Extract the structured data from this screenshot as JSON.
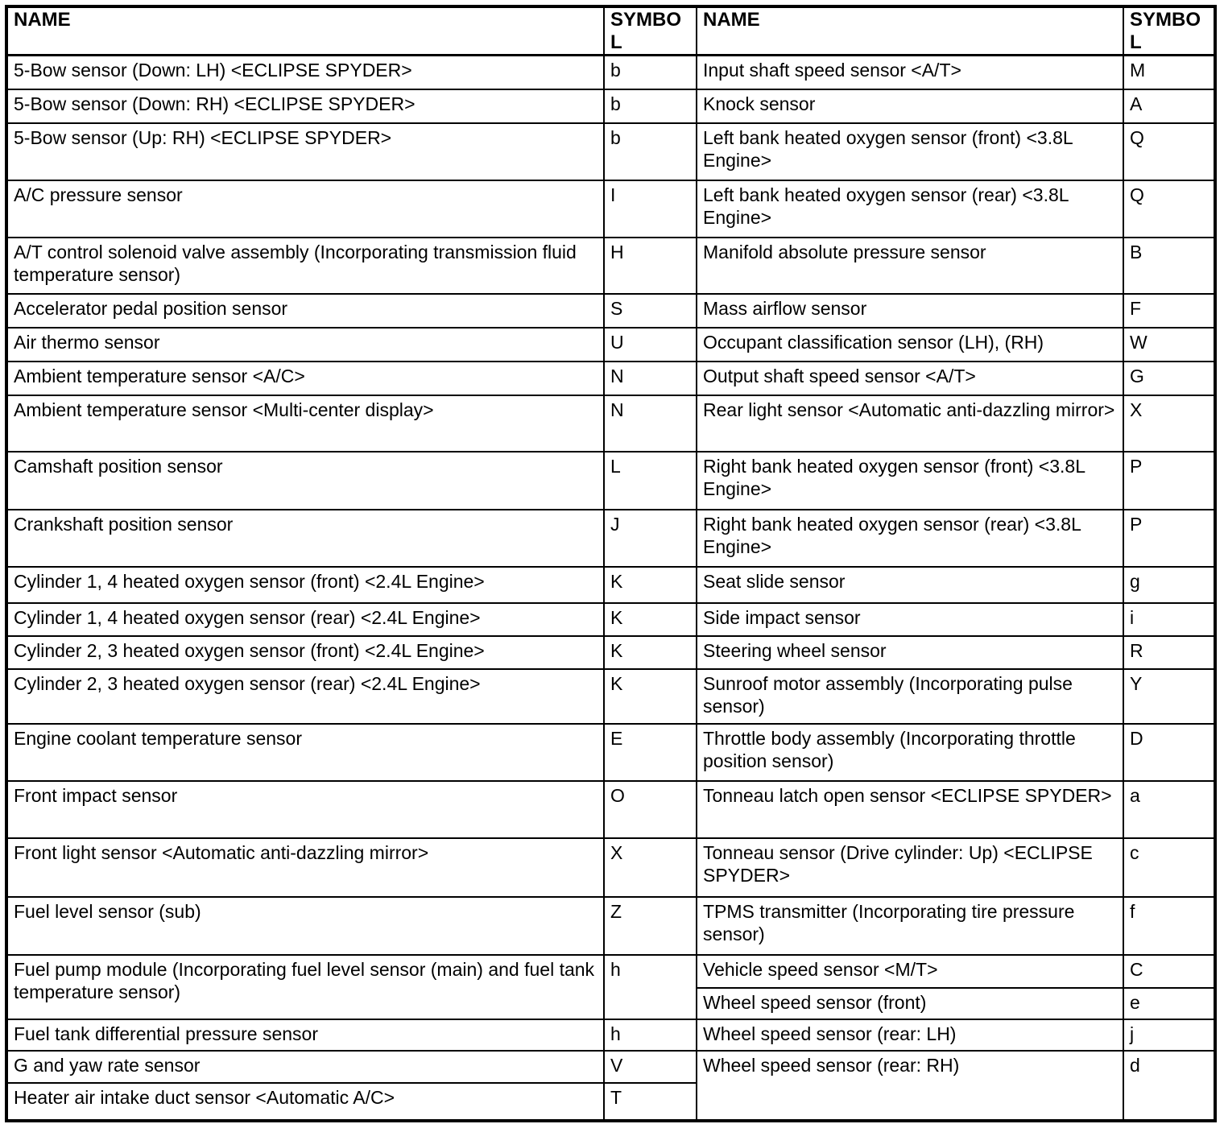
{
  "table": {
    "headers": [
      "NAME",
      "SYMBOL",
      "NAME",
      "SYMBOL"
    ],
    "left": [
      {
        "name": "5-Bow sensor (Down: LH) <ECLIPSE SPYDER>",
        "symbol": "b"
      },
      {
        "name": "5-Bow sensor (Down: RH) <ECLIPSE SPYDER>",
        "symbol": "b"
      },
      {
        "name": "5-Bow sensor (Up: RH) <ECLIPSE SPYDER>",
        "symbol": "b"
      },
      {
        "name": "A/C pressure sensor",
        "symbol": "I"
      },
      {
        "name": "A/T control solenoid valve assembly (Incorporating transmission fluid temperature sensor)",
        "symbol": "H"
      },
      {
        "name": "Accelerator pedal position sensor",
        "symbol": "S"
      },
      {
        "name": "Air thermo sensor",
        "symbol": "U"
      },
      {
        "name": "Ambient temperature sensor <A/C>",
        "symbol": "N"
      },
      {
        "name": "Ambient temperature sensor <Multi-center display>",
        "symbol": "N"
      },
      {
        "name": "Camshaft position sensor",
        "symbol": "L"
      },
      {
        "name": "Crankshaft position sensor",
        "symbol": "J"
      },
      {
        "name": "Cylinder 1, 4 heated oxygen sensor (front) <2.4L Engine>",
        "symbol": "K"
      },
      {
        "name": "Cylinder 1, 4 heated oxygen sensor (rear) <2.4L Engine>",
        "symbol": "K"
      },
      {
        "name": "Cylinder 2, 3 heated oxygen sensor (front) <2.4L Engine>",
        "symbol": "K"
      },
      {
        "name": "Cylinder 2, 3 heated oxygen sensor (rear) <2.4L Engine>",
        "symbol": "K"
      },
      {
        "name": "Engine coolant temperature sensor",
        "symbol": "E"
      },
      {
        "name": "Front impact sensor",
        "symbol": "O"
      },
      {
        "name": "Front light sensor <Automatic anti-dazzling mirror>",
        "symbol": "X"
      },
      {
        "name": "Fuel level sensor (sub)",
        "symbol": "Z"
      },
      {
        "name": "Fuel pump module (Incorporating fuel level sensor (main) and fuel tank temperature sensor)",
        "symbol": "h"
      },
      {
        "name": "Fuel tank differential pressure sensor",
        "symbol": "h"
      },
      {
        "name": "G and yaw rate sensor",
        "symbol": "V"
      },
      {
        "name": "Heater air intake duct sensor <Automatic A/C>",
        "symbol": "T"
      }
    ],
    "right": [
      {
        "name": "Input shaft speed sensor <A/T>",
        "symbol": "M"
      },
      {
        "name": "Knock sensor",
        "symbol": "A"
      },
      {
        "name": "Left bank heated oxygen sensor (front) <3.8L Engine>",
        "symbol": "Q"
      },
      {
        "name": "Left bank heated oxygen sensor (rear) <3.8L Engine>",
        "symbol": "Q"
      },
      {
        "name": "Manifold absolute pressure sensor",
        "symbol": "B"
      },
      {
        "name": "Mass airflow sensor",
        "symbol": "F"
      },
      {
        "name": "Occupant classification sensor (LH), (RH)",
        "symbol": "W"
      },
      {
        "name": "Output shaft speed sensor <A/T>",
        "symbol": "G"
      },
      {
        "name": "Rear light sensor <Automatic anti-dazzling mirror>",
        "symbol": "X"
      },
      {
        "name": "Right bank heated oxygen sensor (front) <3.8L Engine>",
        "symbol": "P"
      },
      {
        "name": "Right bank heated oxygen sensor (rear) <3.8L Engine>",
        "symbol": "P"
      },
      {
        "name": "Seat slide sensor",
        "symbol": "g"
      },
      {
        "name": "Side impact sensor",
        "symbol": "i"
      },
      {
        "name": "Steering wheel sensor",
        "symbol": "R"
      },
      {
        "name": "Sunroof motor assembly (Incorporating pulse sensor)",
        "symbol": "Y"
      },
      {
        "name": "Throttle body assembly (Incorporating throttle position sensor)",
        "symbol": "D"
      },
      {
        "name": "Tonneau latch open sensor <ECLIPSE SPYDER>",
        "symbol": "a"
      },
      {
        "name": "Tonneau sensor (Drive cylinder: Up) <ECLIPSE SPYDER>",
        "symbol": "c"
      },
      {
        "name": "TPMS transmitter (Incorporating tire pressure sensor)",
        "symbol": "f"
      },
      {
        "name": "Vehicle speed sensor <M/T>",
        "symbol": "C"
      },
      {
        "name": "Wheel speed sensor (front)",
        "symbol": "e"
      },
      {
        "name": "Wheel speed sensor (rear: LH)",
        "symbol": "j"
      },
      {
        "name": "Wheel speed sensor (rear: RH)",
        "symbol": "d"
      }
    ]
  }
}
